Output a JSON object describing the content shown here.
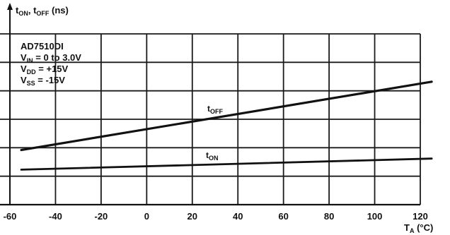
{
  "chart_data": {
    "type": "line",
    "title": "",
    "xlabel": "T_A (°C)",
    "ylabel": "t_ON, t_OFF (ns)",
    "xlim": [
      -60,
      120
    ],
    "x_ticks": [
      -60,
      -40,
      -20,
      0,
      20,
      40,
      60,
      80,
      100,
      120
    ],
    "grid": true,
    "y_tick_labels_visible": false,
    "annotations": [
      "AD7510DI",
      "V_IN = 0 to 3.0V",
      "V_DD = +15V",
      "V_SS = -15V"
    ],
    "series": [
      {
        "name": "t_OFF",
        "x": [
          -55,
          125
        ],
        "y_frac": [
          0.32,
          0.72
        ]
      },
      {
        "name": "t_ON",
        "x": [
          -55,
          125
        ],
        "y_frac": [
          0.205,
          0.27
        ]
      }
    ]
  },
  "labels": {
    "y_axis_main": "t",
    "y_axis_sub_on": "ON",
    "y_axis_sep": ", t",
    "y_axis_sub_off": "OFF",
    "y_axis_unit": " (ns)",
    "x_axis_main": "T",
    "x_axis_sub": "A",
    "x_axis_unit": " (°C)",
    "note_part": "AD7510DI",
    "note_vin_sub": "IN",
    "note_vin_rest": " = 0 to 3.0V",
    "note_vdd_sub": "DD",
    "note_vdd_rest": " = +15V",
    "note_vss_sub": "SS",
    "note_vss_rest": " = -15V",
    "curve_off_main": "t",
    "curve_off_sub": "OFF",
    "curve_on_main": "t",
    "curve_on_sub": "ON",
    "v_letter": "V"
  }
}
